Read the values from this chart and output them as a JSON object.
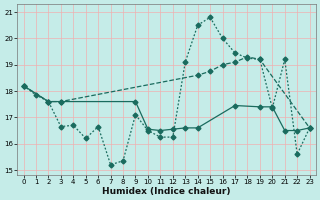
{
  "xlabel": "Humidex (Indice chaleur)",
  "xlim": [
    -0.5,
    23.5
  ],
  "ylim": [
    14.8,
    21.3
  ],
  "yticks": [
    15,
    16,
    17,
    18,
    19,
    20,
    21
  ],
  "xticks": [
    0,
    1,
    2,
    3,
    4,
    5,
    6,
    7,
    8,
    9,
    10,
    11,
    12,
    13,
    14,
    15,
    16,
    17,
    18,
    19,
    20,
    21,
    22,
    23
  ],
  "bg_color": "#c5ece8",
  "line_color": "#1a6b5e",
  "grid_color": "#f0b0b0",
  "dot_x": [
    0,
    1,
    2,
    3,
    4,
    5,
    6,
    7,
    8,
    9,
    10,
    11,
    12,
    13,
    14,
    15,
    16,
    17,
    18,
    19,
    20,
    21,
    22,
    23
  ],
  "dot_y": [
    18.2,
    17.85,
    17.6,
    16.65,
    16.7,
    16.2,
    16.65,
    15.2,
    15.35,
    17.1,
    16.5,
    16.25,
    16.25,
    19.1,
    20.5,
    20.8,
    20.0,
    19.45,
    19.25,
    19.2,
    17.35,
    19.2,
    15.6,
    16.6
  ],
  "dash_x": [
    0,
    2,
    3,
    14,
    15,
    16,
    17,
    18,
    19,
    23
  ],
  "dash_y": [
    18.2,
    17.6,
    17.6,
    18.6,
    18.75,
    19.0,
    19.1,
    19.3,
    19.2,
    16.6
  ],
  "solid_x": [
    0,
    2,
    3,
    9,
    10,
    11,
    12,
    13,
    14,
    17,
    19,
    20,
    21,
    22,
    23
  ],
  "solid_y": [
    18.2,
    17.6,
    17.6,
    17.6,
    16.55,
    16.5,
    16.55,
    16.6,
    16.6,
    17.45,
    17.4,
    17.4,
    16.5,
    16.5,
    16.6
  ]
}
